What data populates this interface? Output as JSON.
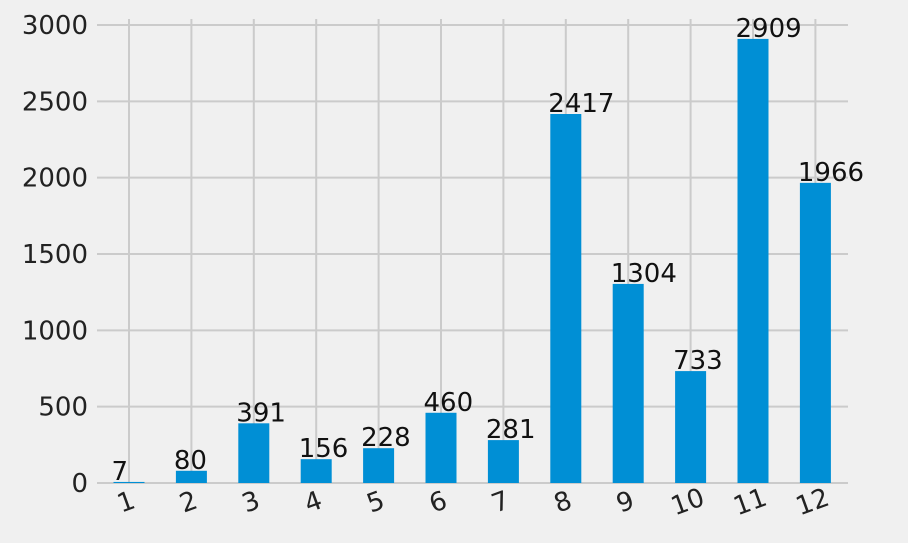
{
  "chart_data": {
    "type": "bar",
    "categories": [
      "1",
      "2",
      "3",
      "4",
      "5",
      "6",
      "7",
      "8",
      "9",
      "10",
      "11",
      "12"
    ],
    "values": [
      7,
      80,
      391,
      156,
      228,
      460,
      281,
      2417,
      1304,
      733,
      2909,
      1966
    ],
    "data_labels": [
      "7",
      "80",
      "391",
      "156",
      "228",
      "460",
      "281",
      "2417",
      "1304",
      "733",
      "2909",
      "1966"
    ],
    "title": "",
    "xlabel": "",
    "ylabel": "",
    "ylim": [
      0,
      3000
    ],
    "yticks": [
      "0",
      "500",
      "1000",
      "1500",
      "2000",
      "2500",
      "3000"
    ],
    "grid": true,
    "bar_color": "#008fd5",
    "background_color": "#f0f0f0",
    "grid_color": "#cbcbcb"
  }
}
